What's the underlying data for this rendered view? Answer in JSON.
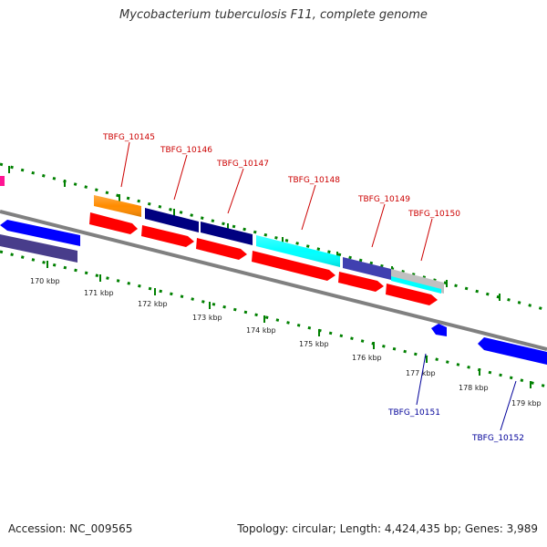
{
  "header": {
    "title": "Mycobacterium tuberculosis F11, complete genome"
  },
  "footer": {
    "accession": "Accession: NC_009565",
    "summary": "Topology: circular; Length: 4,424,435 bp; Genes: 3,989"
  },
  "genes_upper": [
    {
      "name": "TBFG_10145",
      "color": "#ff8c00"
    },
    {
      "name": "TBFG_10146",
      "color": "#000080"
    },
    {
      "name": "TBFG_10147",
      "color": "#000080"
    },
    {
      "name": "TBFG_10148",
      "color": "#00ffff"
    },
    {
      "name": "TBFG_10149",
      "color": "#000080"
    },
    {
      "name": "TBFG_10150",
      "color": "#c0c0c0"
    }
  ],
  "genes_lower": [
    {
      "name": "TBFG_10151",
      "color": "#0000ff"
    },
    {
      "name": "TBFG_10152",
      "color": "#0000ff"
    }
  ],
  "kbp_ticks": [
    "170 kbp",
    "171 kbp",
    "172 kbp",
    "173 kbp",
    "174 kbp",
    "175 kbp",
    "176 kbp",
    "177 kbp",
    "178 kbp",
    "179 kbp"
  ],
  "colors": {
    "backbone": "#808080",
    "cds_forward": "#ff0000",
    "cds_reverse": "#0000ff",
    "cds_reverse_dark": "#483d8b",
    "tick": "#008000",
    "magenta": "#ff1493"
  }
}
